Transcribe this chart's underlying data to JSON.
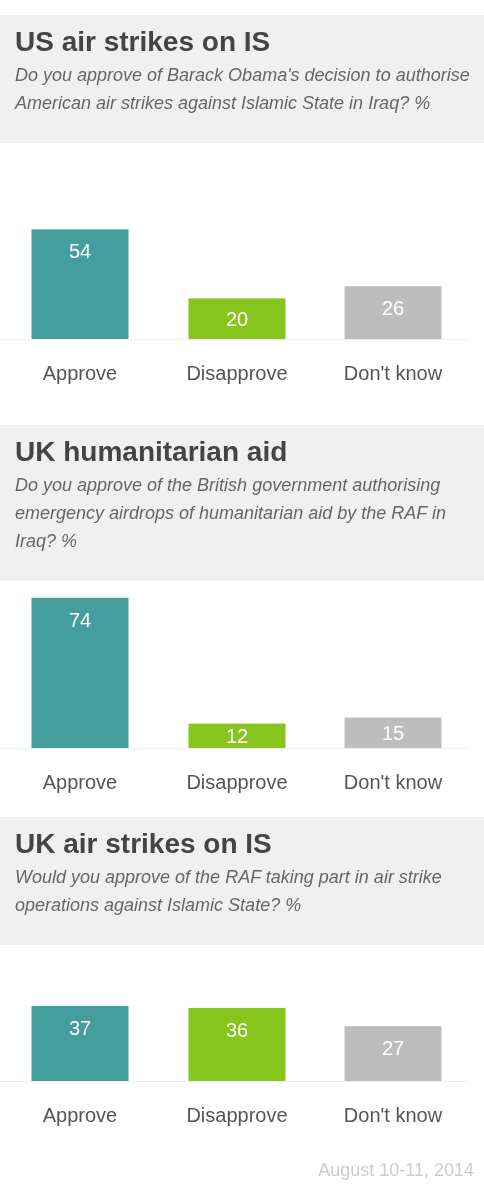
{
  "chart_data": [
    {
      "type": "bar",
      "title": "US air strikes on IS",
      "subtitle": "Do you approve of Barack Obama's decision to authorise American air strikes against Islamic State in Iraq? %",
      "categories": [
        "Approve",
        "Disapprove",
        "Don't know"
      ],
      "values": [
        54,
        20,
        26
      ],
      "colors": [
        "#459e9e",
        "#86c61c",
        "#bdbdbd"
      ],
      "data_labels": true
    },
    {
      "type": "bar",
      "title": "UK humanitarian aid",
      "subtitle": "Do you approve of the British government authorising emergency airdrops of humanitarian aid by the RAF in Iraq? %",
      "categories": [
        "Approve",
        "Disapprove",
        "Don't know"
      ],
      "values": [
        74,
        12,
        15
      ],
      "colors": [
        "#459e9e",
        "#86c61c",
        "#bdbdbd"
      ],
      "data_labels": true
    },
    {
      "type": "bar",
      "title": "UK air strikes on IS",
      "subtitle": "Would you approve of the RAF taking part in air strike operations against Islamic State? %",
      "categories": [
        "Approve",
        "Disapprove",
        "Don't know"
      ],
      "values": [
        37,
        36,
        27
      ],
      "colors": [
        "#459e9e",
        "#86c61c",
        "#bdbdbd"
      ],
      "data_labels": true,
      "annotations": [
        "August 10-11, 2014"
      ]
    }
  ]
}
